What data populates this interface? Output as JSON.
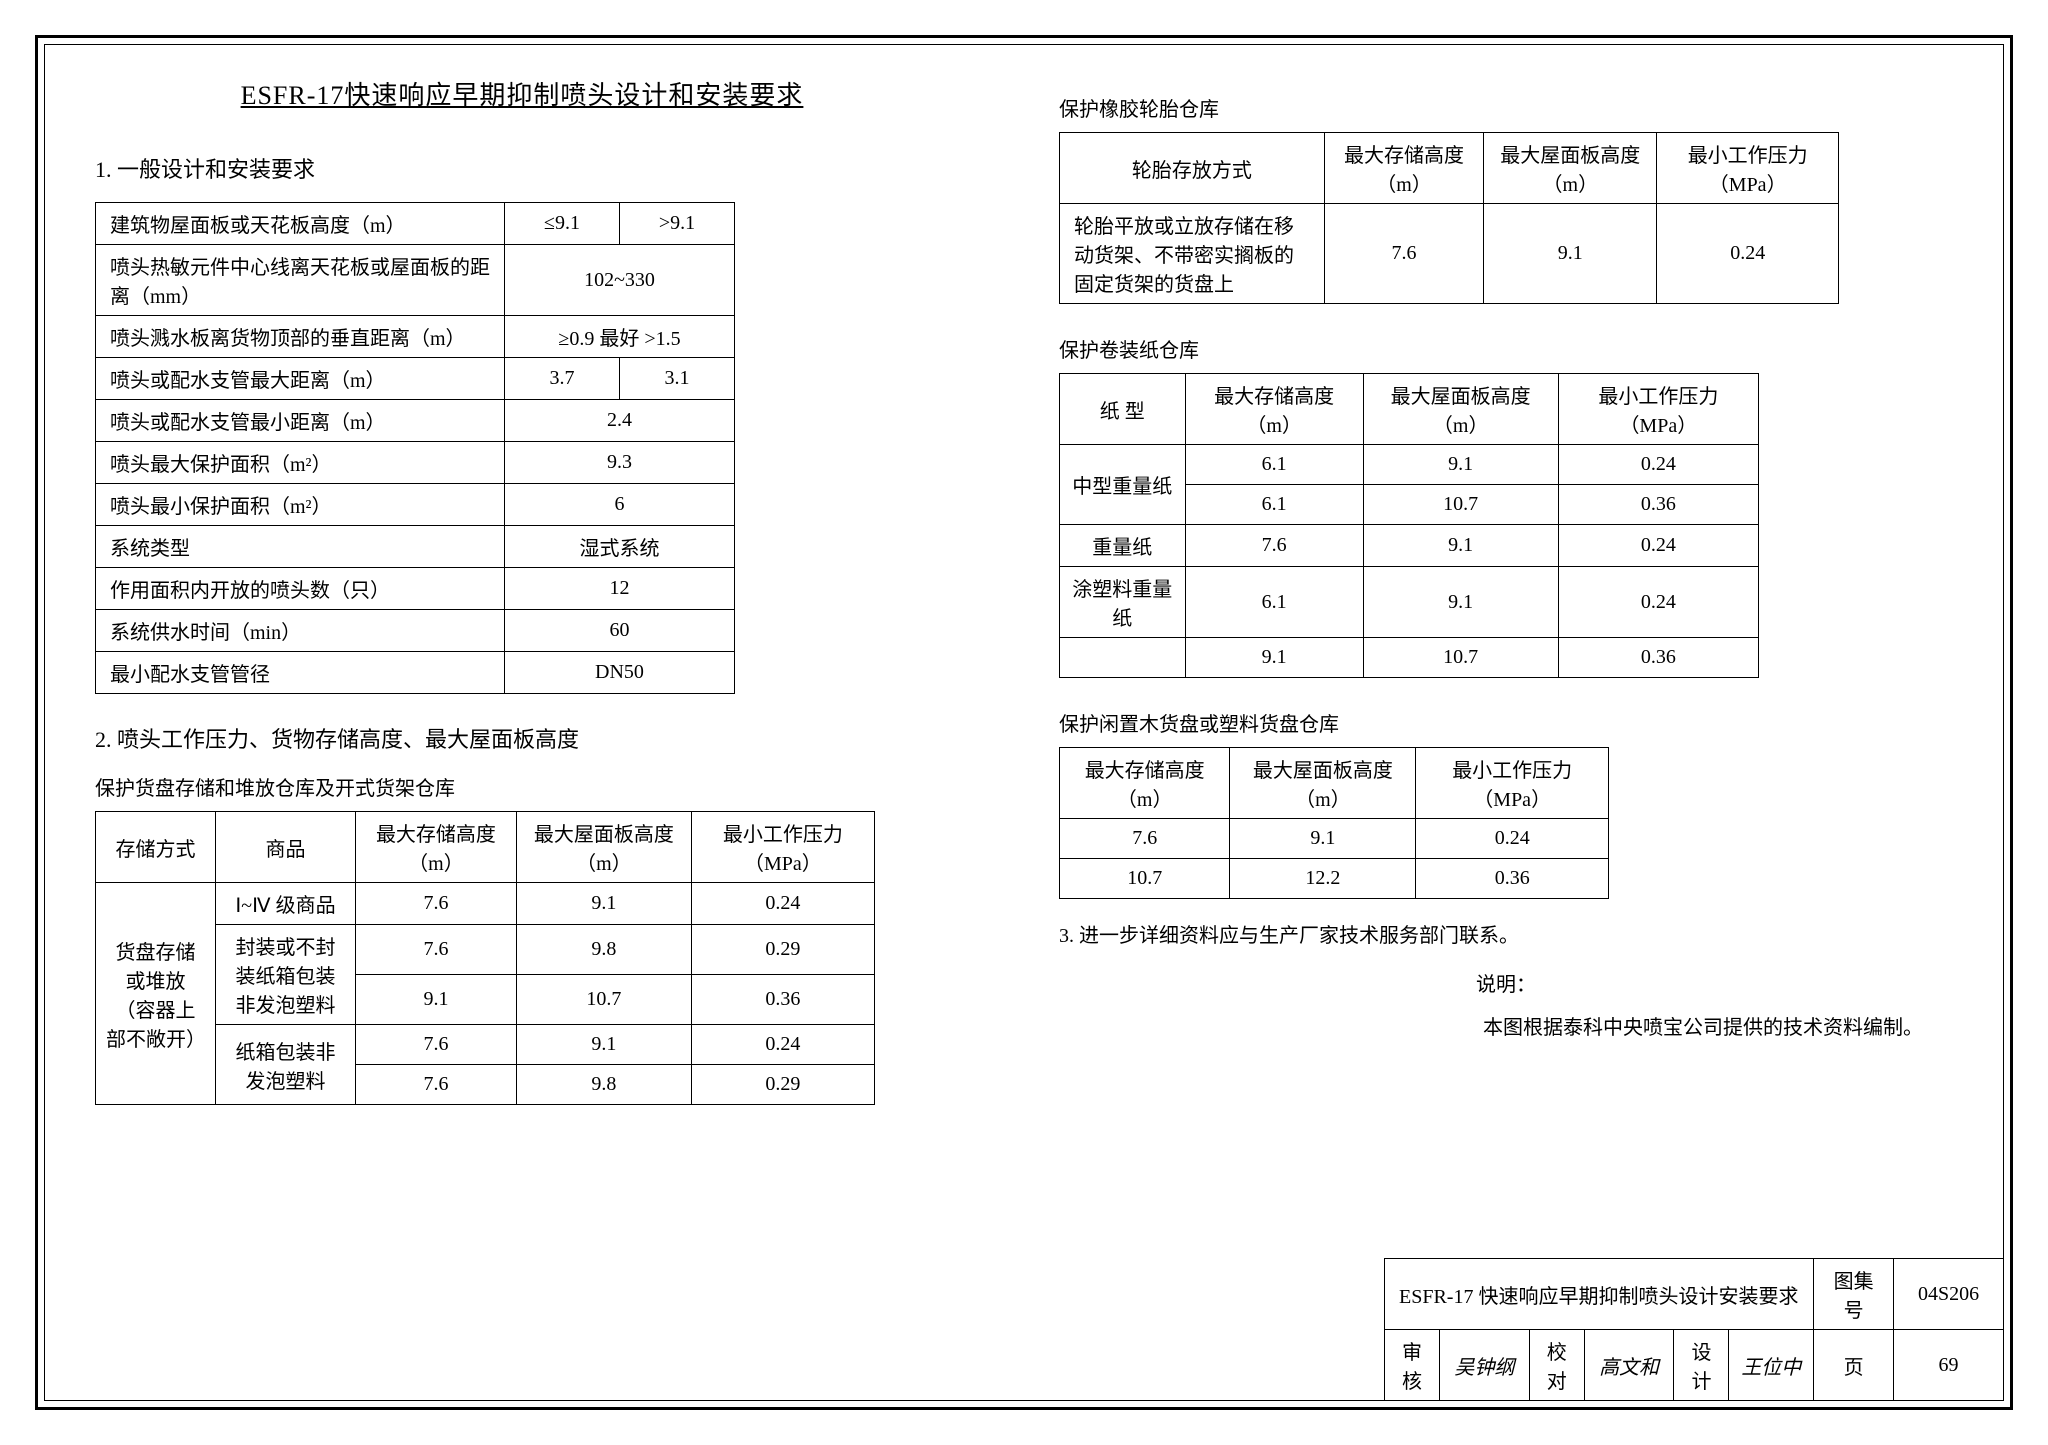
{
  "mainTitle": "ESFR-17快速响应早期抑制喷头设计和安装要求",
  "section1": "1. 一般设计和安装要求",
  "section2": "2. 喷头工作压力、货物存储高度、最大屋面板高度",
  "section3": "3. 进一步详细资料应与生产厂家技术服务部门联系。",
  "shuoming": "说明：",
  "shuomingBody": "本图根据泰科中央喷宝公司提供的技术资料编制。",
  "table1": {
    "rows": [
      {
        "label": "建筑物屋面板或天花板高度（m）",
        "c1": "≤9.1",
        "c2": ">9.1",
        "span": false
      },
      {
        "label": "喷头热敏元件中心线离天花板或屋面板的距离（mm）",
        "val": "102~330",
        "span": true
      },
      {
        "label": "喷头溅水板离货物顶部的垂直距离（m）",
        "val": "≥0.9 最好 >1.5",
        "span": true
      },
      {
        "label": "喷头或配水支管最大距离（m）",
        "c1": "3.7",
        "c2": "3.1",
        "span": false
      },
      {
        "label": "喷头或配水支管最小距离（m）",
        "val": "2.4",
        "span": true
      },
      {
        "label": "喷头最大保护面积（m²）",
        "val": "9.3",
        "span": true
      },
      {
        "label": "喷头最小保护面积（m²）",
        "val": "6",
        "span": true
      },
      {
        "label": "系统类型",
        "val": "湿式系统",
        "span": true
      },
      {
        "label": "作用面积内开放的喷头数（只）",
        "val": "12",
        "span": true
      },
      {
        "label": "系统供水时间（min）",
        "val": "60",
        "span": true
      },
      {
        "label": "最小配水支管管径",
        "val": "DN50",
        "span": true
      }
    ]
  },
  "table2": {
    "title": "保护货盘存储和堆放仓库及开式货架仓库",
    "headers": [
      "存储方式",
      "商品",
      "最大存储高度（m）",
      "最大屋面板高度（m）",
      "最小工作压力（MPa）"
    ],
    "storage": "货盘存储或堆放（容器上部不敞开）",
    "rows": [
      {
        "goods": "Ⅰ~Ⅳ 级商品",
        "h": "7.6",
        "roof": "9.1",
        "p": "0.24"
      },
      {
        "goods": "封装或不封装纸箱包装非发泡塑料",
        "h": "7.6",
        "roof": "9.8",
        "p": "0.29",
        "gspan": 2
      },
      {
        "h": "9.1",
        "roof": "10.7",
        "p": "0.36"
      },
      {
        "goods": "纸箱包装非发泡塑料",
        "h": "7.6",
        "roof": "9.1",
        "p": "0.24",
        "gspan": 2
      },
      {
        "h": "7.6",
        "roof": "9.8",
        "p": "0.29"
      }
    ]
  },
  "table3a": {
    "title": "保护橡胶轮胎仓库",
    "headers": [
      "轮胎存放方式",
      "最大存储高度（m）",
      "最大屋面板高度（m）",
      "最小工作压力（MPa）"
    ],
    "rows": [
      {
        "mode": "轮胎平放或立放存储在移动货架、不带密实搁板的固定货架的货盘上",
        "h": "7.6",
        "roof": "9.1",
        "p": "0.24"
      }
    ]
  },
  "table3b": {
    "title": "保护卷装纸仓库",
    "headers": [
      "纸    型",
      "最大存储高度（m）",
      "最大屋面板高度（m）",
      "最小工作压力（MPa）"
    ],
    "rows": [
      {
        "type": "中型重量纸",
        "h": "6.1",
        "roof": "9.1",
        "p": "0.24",
        "tspan": 2
      },
      {
        "h": "6.1",
        "roof": "10.7",
        "p": "0.36"
      },
      {
        "type": "重量纸",
        "h": "7.6",
        "roof": "9.1",
        "p": "0.24"
      },
      {
        "type": "涂塑料重量纸",
        "h": "6.1",
        "roof": "9.1",
        "p": "0.24"
      },
      {
        "type": "",
        "h": "9.1",
        "roof": "10.7",
        "p": "0.36"
      }
    ]
  },
  "table3c": {
    "title": "保护闲置木货盘或塑料货盘仓库",
    "headers": [
      "最大存储高度（m）",
      "最大屋面板高度（m）",
      "最小工作压力（MPa）"
    ],
    "rows": [
      {
        "h": "7.6",
        "roof": "9.1",
        "p": "0.24"
      },
      {
        "h": "10.7",
        "roof": "12.2",
        "p": "0.36"
      }
    ]
  },
  "titleBlock": {
    "docTitle": "ESFR-17 快速响应早期抑制喷头设计安装要求",
    "tuji": "图集号",
    "tujiVal": "04S206",
    "shenhe": "审核",
    "sig1": "吴钟纲",
    "jiaodui": "校对",
    "sig2": "高文和",
    "sheji": "设计",
    "sig3": "王位中",
    "ye": "页",
    "yeVal": "69"
  }
}
